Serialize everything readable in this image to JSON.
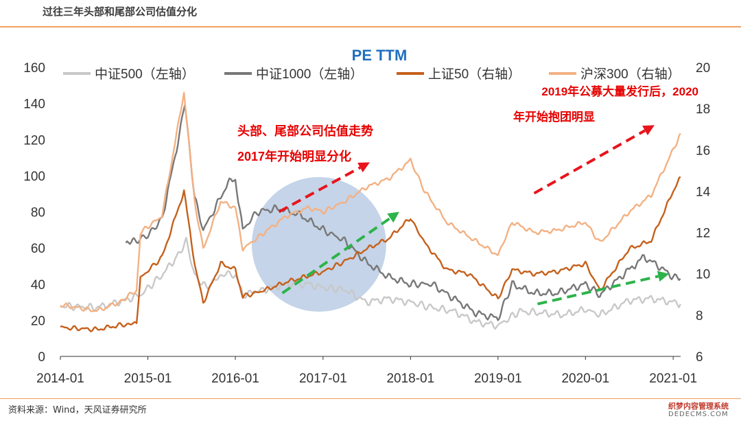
{
  "header": {
    "title": "过往三年头部和尾部公司估值分化"
  },
  "footer": {
    "source": "资料来源：Wind，天风证券研究所"
  },
  "watermark": {
    "line1": "织梦内容管理系统",
    "line2": "DEDECMS.COM"
  },
  "chart_data": {
    "type": "line",
    "title": "PE TTM",
    "title_color": "#1f6fbf",
    "x_tick_labels": [
      "2014-01",
      "2015-01",
      "2016-01",
      "2017-01",
      "2018-01",
      "2019-01",
      "2020-01",
      "2021-01"
    ],
    "xlim": [
      "2014-01-01",
      "2021-02-01"
    ],
    "y_left": {
      "ylim": [
        0,
        160
      ],
      "ticks": [
        0,
        20,
        40,
        60,
        80,
        100,
        120,
        140,
        160
      ]
    },
    "y_right": {
      "ylim": [
        6,
        20
      ],
      "ticks": [
        6,
        8,
        10,
        12,
        14,
        16,
        18,
        20
      ]
    },
    "grid": false,
    "legend_position": "top",
    "series": [
      {
        "name": "中证500（左轴）",
        "axis": "left",
        "color": "#c8c8c8",
        "points": [
          [
            "2014-01-01",
            28
          ],
          [
            "2014-06-01",
            27
          ],
          [
            "2014-09-01",
            30
          ],
          [
            "2014-12-01",
            34
          ],
          [
            "2015-03-01",
            45
          ],
          [
            "2015-05-01",
            55
          ],
          [
            "2015-06-10",
            64
          ],
          [
            "2015-07-15",
            45
          ],
          [
            "2015-09-01",
            38
          ],
          [
            "2015-11-15",
            46
          ],
          [
            "2016-01-01",
            45
          ],
          [
            "2016-02-01",
            34
          ],
          [
            "2016-05-01",
            37
          ],
          [
            "2016-08-01",
            40
          ],
          [
            "2016-11-01",
            40
          ],
          [
            "2017-01-01",
            38
          ],
          [
            "2017-04-01",
            37
          ],
          [
            "2017-07-01",
            30
          ],
          [
            "2017-10-01",
            32
          ],
          [
            "2018-01-01",
            30
          ],
          [
            "2018-04-01",
            27
          ],
          [
            "2018-07-01",
            25
          ],
          [
            "2018-10-01",
            19
          ],
          [
            "2019-01-01",
            17
          ],
          [
            "2019-04-01",
            25
          ],
          [
            "2019-07-01",
            24
          ],
          [
            "2019-10-01",
            23
          ],
          [
            "2020-01-01",
            26
          ],
          [
            "2020-03-01",
            23
          ],
          [
            "2020-07-01",
            31
          ],
          [
            "2020-10-01",
            32
          ],
          [
            "2021-01-01",
            30
          ],
          [
            "2021-01-31",
            29
          ]
        ]
      },
      {
        "name": "中证1000（左轴）",
        "axis": "left",
        "color": "#777777",
        "points": [
          [
            "2014-10-01",
            62
          ],
          [
            "2014-11-15",
            64
          ],
          [
            "2015-01-01",
            67
          ],
          [
            "2015-03-01",
            76
          ],
          [
            "2015-05-01",
            115
          ],
          [
            "2015-06-05",
            140
          ],
          [
            "2015-07-15",
            88
          ],
          [
            "2015-08-20",
            70
          ],
          [
            "2015-10-01",
            80
          ],
          [
            "2015-12-01",
            96
          ],
          [
            "2016-01-01",
            98
          ],
          [
            "2016-02-01",
            70
          ],
          [
            "2016-04-01",
            80
          ],
          [
            "2016-07-01",
            82
          ],
          [
            "2016-10-01",
            78
          ],
          [
            "2017-01-01",
            70
          ],
          [
            "2017-04-01",
            64
          ],
          [
            "2017-07-01",
            52
          ],
          [
            "2017-10-01",
            44
          ],
          [
            "2018-01-01",
            40
          ],
          [
            "2018-04-01",
            40
          ],
          [
            "2018-07-01",
            32
          ],
          [
            "2018-10-01",
            24
          ],
          [
            "2019-01-01",
            21
          ],
          [
            "2019-03-01",
            40
          ],
          [
            "2019-06-01",
            35
          ],
          [
            "2019-09-01",
            35
          ],
          [
            "2020-01-01",
            40
          ],
          [
            "2020-03-01",
            34
          ],
          [
            "2020-07-01",
            48
          ],
          [
            "2020-09-01",
            55
          ],
          [
            "2020-11-01",
            50
          ],
          [
            "2021-01-01",
            44
          ],
          [
            "2021-01-31",
            43
          ]
        ]
      },
      {
        "name": "上证50（右轴）",
        "axis": "right",
        "color": "#c5601b",
        "points": [
          [
            "2014-01-01",
            7.4
          ],
          [
            "2014-06-01",
            7.3
          ],
          [
            "2014-09-01",
            7.5
          ],
          [
            "2014-11-15",
            7.6
          ],
          [
            "2014-12-01",
            9.8
          ],
          [
            "2015-03-01",
            10.8
          ],
          [
            "2015-06-01",
            14.0
          ],
          [
            "2015-07-15",
            10.5
          ],
          [
            "2015-08-20",
            8.6
          ],
          [
            "2015-11-01",
            10.5
          ],
          [
            "2016-01-01",
            10.2
          ],
          [
            "2016-02-01",
            8.9
          ],
          [
            "2016-05-01",
            9.2
          ],
          [
            "2016-08-01",
            9.6
          ],
          [
            "2016-11-01",
            9.9
          ],
          [
            "2017-01-01",
            10.1
          ],
          [
            "2017-04-01",
            10.6
          ],
          [
            "2017-07-01",
            11.2
          ],
          [
            "2017-10-01",
            11.7
          ],
          [
            "2018-01-01",
            12.7
          ],
          [
            "2018-03-01",
            11.5
          ],
          [
            "2018-06-01",
            10.2
          ],
          [
            "2018-09-01",
            10.0
          ],
          [
            "2019-01-01",
            8.8
          ],
          [
            "2019-03-01",
            10.2
          ],
          [
            "2019-06-01",
            10.0
          ],
          [
            "2019-09-01",
            10.1
          ],
          [
            "2020-01-01",
            10.5
          ],
          [
            "2020-03-01",
            9.2
          ],
          [
            "2020-07-01",
            11.2
          ],
          [
            "2020-10-01",
            11.6
          ],
          [
            "2021-01-01",
            14.0
          ],
          [
            "2021-01-31",
            14.7
          ]
        ]
      },
      {
        "name": "沪深300（右轴）",
        "axis": "right",
        "color": "#f3b183",
        "points": [
          [
            "2014-01-01",
            8.5
          ],
          [
            "2014-06-01",
            8.2
          ],
          [
            "2014-09-01",
            8.6
          ],
          [
            "2014-11-15",
            9.2
          ],
          [
            "2014-12-01",
            12.0
          ],
          [
            "2015-03-01",
            12.8
          ],
          [
            "2015-06-01",
            18.8
          ],
          [
            "2015-07-15",
            13.5
          ],
          [
            "2015-08-20",
            11.2
          ],
          [
            "2015-11-01",
            13.5
          ],
          [
            "2016-01-01",
            13.2
          ],
          [
            "2016-02-01",
            11.2
          ],
          [
            "2016-05-01",
            12.0
          ],
          [
            "2016-08-01",
            12.8
          ],
          [
            "2016-11-01",
            13.2
          ],
          [
            "2017-01-01",
            13.0
          ],
          [
            "2017-04-01",
            13.5
          ],
          [
            "2017-07-01",
            14.2
          ],
          [
            "2017-10-01",
            14.6
          ],
          [
            "2018-01-01",
            15.5
          ],
          [
            "2018-03-01",
            14.0
          ],
          [
            "2018-06-01",
            12.5
          ],
          [
            "2018-09-01",
            11.8
          ],
          [
            "2019-01-01",
            10.9
          ],
          [
            "2019-03-01",
            12.5
          ],
          [
            "2019-06-01",
            12.0
          ],
          [
            "2019-09-01",
            12.1
          ],
          [
            "2020-01-01",
            12.5
          ],
          [
            "2020-03-01",
            11.5
          ],
          [
            "2020-07-01",
            13.0
          ],
          [
            "2020-10-01",
            13.8
          ],
          [
            "2021-01-01",
            16.0
          ],
          [
            "2021-01-31",
            16.8
          ]
        ]
      }
    ],
    "annotations": [
      {
        "text": "头部、尾部公司估值走势",
        "color": "#e60000"
      },
      {
        "text": "2017年开始明显分化",
        "color": "#e60000"
      },
      {
        "text": "2019年公募大量发行后，2020",
        "color": "#e60000"
      },
      {
        "text": "年开始抱团明显",
        "color": "#e60000"
      }
    ],
    "arrows": [
      {
        "color": "#e8141c",
        "from": [
          "2016-07-01",
          13.0
        ],
        "to": [
          "2017-07-15",
          15.4
        ]
      },
      {
        "color": "#2db34a",
        "from": [
          "2016-07-15",
          35
        ],
        "to": [
          "2017-11-15",
          13
        ]
      },
      {
        "color": "#e8141c",
        "from": [
          "2019-06-01",
          13.9
        ],
        "to": [
          "2020-10-15",
          17.2
        ]
      },
      {
        "color": "#2db34a",
        "from": [
          "2019-06-15",
          29
        ],
        "to": [
          "2020-12-15",
          10
        ]
      }
    ],
    "highlight_circle": {
      "center": [
        "2016-12-15",
        62
      ],
      "fill": "#b7c9e2"
    }
  }
}
